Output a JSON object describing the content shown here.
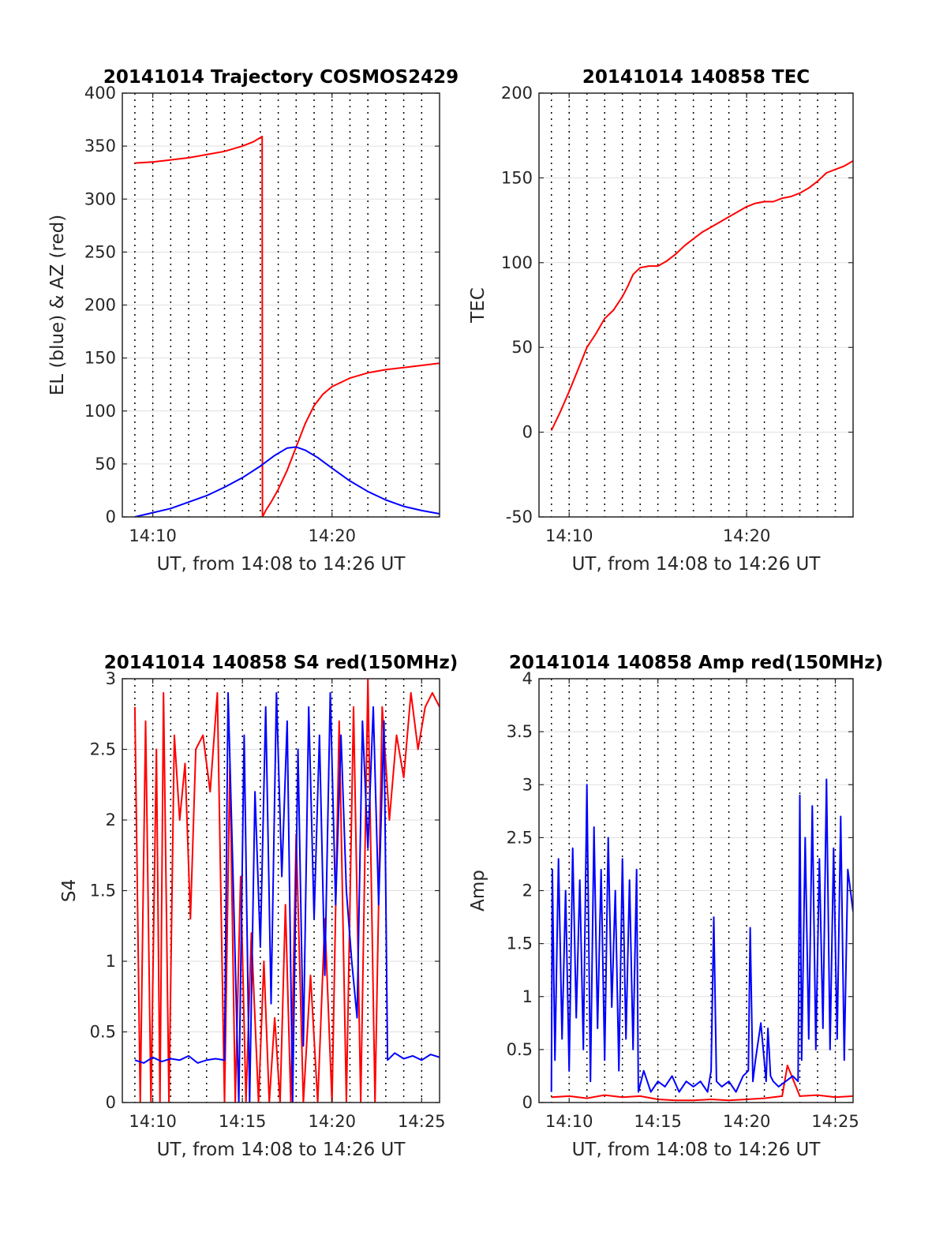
{
  "chart_data": [
    {
      "id": "trajectory",
      "type": "line",
      "title": "20141014 Trajectory COSMOS2429",
      "xlabel": "UT, from 14:08 to 14:26 UT",
      "ylabel": "EL (blue) & AZ (red)",
      "x_unit": "minutes after 14:00 UT",
      "xlim": [
        8.3,
        26.0
      ],
      "ylim": [
        0,
        400
      ],
      "yticks": [
        0,
        50,
        100,
        150,
        200,
        250,
        300,
        350,
        400
      ],
      "xticks": [
        {
          "value": 10,
          "label": "14:10"
        },
        {
          "value": 20,
          "label": "14:20"
        }
      ],
      "grid": true,
      "series": [
        {
          "color": "#ff0000",
          "x": [
            9.0,
            10.0,
            11.0,
            12.0,
            13.0,
            14.0,
            15.0,
            15.6,
            16.1,
            16.12,
            16.3,
            16.6,
            17.0,
            17.5,
            18.0,
            18.5,
            19.0,
            19.5,
            20.0,
            21.0,
            22.0,
            23.0,
            24.0,
            25.0,
            26.0
          ],
          "y": [
            334,
            335,
            337,
            339,
            342,
            345,
            350,
            354,
            359,
            0,
            6,
            14,
            26,
            44,
            66,
            88,
            105,
            116,
            123,
            131,
            136,
            139,
            141,
            143,
            145
          ]
        },
        {
          "color": "#0000ff",
          "x": [
            9.0,
            10.0,
            11.0,
            12.0,
            13.0,
            14.0,
            15.0,
            16.0,
            16.8,
            17.5,
            18.0,
            18.5,
            19.2,
            20.0,
            21.0,
            22.0,
            23.0,
            24.0,
            25.0,
            26.0
          ],
          "y": [
            0,
            4,
            8,
            14,
            20,
            28,
            37,
            48,
            58,
            65,
            66,
            63,
            56,
            46,
            34,
            24,
            16,
            10,
            6,
            3
          ]
        }
      ]
    },
    {
      "id": "tec",
      "type": "line",
      "title": "20141014 140858 TEC",
      "xlabel": "UT, from 14:08 to 14:26 UT",
      "ylabel": "TEC",
      "x_unit": "minutes after 14:00 UT",
      "xlim": [
        8.3,
        26.0
      ],
      "ylim": [
        -50,
        200
      ],
      "yticks": [
        -50,
        0,
        50,
        100,
        150,
        200
      ],
      "xticks": [
        {
          "value": 10,
          "label": "14:10"
        },
        {
          "value": 20,
          "label": "14:20"
        }
      ],
      "grid": true,
      "series": [
        {
          "color": "#ff0000",
          "x": [
            9.0,
            9.5,
            10.0,
            10.5,
            11.0,
            11.5,
            12.0,
            12.5,
            13.0,
            13.3,
            13.6,
            14.0,
            14.5,
            15.0,
            15.5,
            16.0,
            16.5,
            17.0,
            17.5,
            18.0,
            18.5,
            19.0,
            19.5,
            20.0,
            20.5,
            21.0,
            21.5,
            22.0,
            22.5,
            23.0,
            23.5,
            24.0,
            24.5,
            25.0,
            25.5,
            26.0
          ],
          "y": [
            1,
            12,
            24,
            37,
            50,
            58,
            67,
            72,
            80,
            86,
            93,
            97,
            98,
            98,
            101,
            105,
            110,
            114,
            118,
            121,
            124,
            127,
            130,
            133,
            135,
            136,
            136,
            138,
            139,
            141,
            144,
            148,
            153,
            155,
            157,
            160
          ]
        }
      ]
    },
    {
      "id": "s4",
      "type": "line",
      "title": "20141014 140858 S4 red(150MHz)",
      "xlabel": "UT, from 14:08 to 14:26 UT",
      "ylabel": "S4",
      "x_unit": "minutes after 14:00 UT",
      "xlim": [
        8.3,
        26.0
      ],
      "ylim": [
        0,
        3
      ],
      "yticks": [
        0,
        0.5,
        1,
        1.5,
        2,
        2.5,
        3
      ],
      "xticks": [
        {
          "value": 10,
          "label": "14:10"
        },
        {
          "value": 15,
          "label": "14:15"
        },
        {
          "value": 20,
          "label": "14:20"
        },
        {
          "value": 25,
          "label": "14:25"
        }
      ],
      "grid": true,
      "series": [
        {
          "color": "#ff0000",
          "x": [
            9.0,
            9.3,
            9.6,
            9.9,
            10.2,
            10.4,
            10.6,
            10.9,
            11.2,
            11.5,
            11.8,
            12.1,
            12.4,
            12.8,
            13.2,
            13.6,
            14.0,
            14.3,
            14.6,
            14.9,
            15.2,
            15.5,
            15.9,
            16.2,
            16.5,
            16.8,
            17.1,
            17.4,
            17.7,
            18.0,
            18.4,
            18.8,
            19.2,
            19.6,
            20.0,
            20.4,
            20.8,
            21.2,
            21.6,
            22.0,
            22.4,
            22.8,
            23.2,
            23.6,
            24.0,
            24.4,
            24.8,
            25.2,
            25.6,
            26.0
          ],
          "y": [
            2.8,
            0.0,
            2.7,
            0.0,
            2.5,
            0.0,
            2.9,
            0.0,
            2.6,
            2.0,
            2.4,
            1.3,
            2.5,
            2.6,
            2.2,
            2.9,
            0.0,
            2.4,
            0.0,
            1.6,
            0.0,
            1.2,
            0.0,
            1.0,
            0.0,
            0.6,
            0.0,
            1.4,
            0.0,
            1.9,
            0.0,
            0.9,
            0.0,
            1.3,
            0.0,
            2.7,
            0.0,
            2.8,
            0.0,
            3.0,
            0.0,
            2.8,
            2.0,
            2.6,
            2.3,
            2.9,
            2.5,
            2.8,
            2.9,
            2.8
          ]
        },
        {
          "color": "#0000ff",
          "x": [
            9.0,
            9.5,
            10.0,
            10.5,
            11.0,
            11.5,
            12.0,
            12.5,
            13.0,
            13.5,
            14.0,
            14.2,
            14.5,
            14.8,
            15.1,
            15.4,
            15.7,
            16.0,
            16.3,
            16.6,
            16.9,
            17.2,
            17.5,
            17.8,
            18.1,
            18.4,
            18.7,
            19.0,
            19.3,
            19.6,
            19.9,
            20.2,
            20.5,
            20.8,
            21.1,
            21.4,
            21.7,
            22.0,
            22.3,
            22.6,
            22.9,
            23.1,
            23.5,
            24.0,
            24.5,
            25.0,
            25.5,
            26.0
          ],
          "y": [
            0.3,
            0.28,
            0.32,
            0.29,
            0.31,
            0.3,
            0.33,
            0.28,
            0.3,
            0.31,
            0.3,
            2.9,
            1.5,
            0.0,
            2.6,
            0.0,
            2.2,
            1.1,
            2.8,
            0.7,
            2.9,
            1.6,
            2.7,
            0.0,
            2.5,
            0.4,
            2.8,
            1.3,
            2.6,
            0.9,
            2.9,
            1.4,
            2.6,
            1.5,
            1.0,
            0.6,
            2.7,
            1.8,
            2.8,
            1.4,
            2.7,
            0.3,
            0.35,
            0.31,
            0.33,
            0.3,
            0.34,
            0.32
          ]
        }
      ]
    },
    {
      "id": "amp",
      "type": "line",
      "title": "20141014 140858 Amp red(150MHz)",
      "xlabel": "UT, from 14:08 to 14:26 UT",
      "ylabel": "Amp",
      "x_unit": "minutes after 14:00 UT",
      "xlim": [
        8.3,
        26.0
      ],
      "ylim": [
        0,
        4
      ],
      "yticks": [
        0,
        0.5,
        1,
        1.5,
        2,
        2.5,
        3,
        3.5,
        4
      ],
      "xticks": [
        {
          "value": 10,
          "label": "14:10"
        },
        {
          "value": 15,
          "label": "14:15"
        },
        {
          "value": 20,
          "label": "14:20"
        },
        {
          "value": 25,
          "label": "14:25"
        }
      ],
      "grid": true,
      "series": [
        {
          "color": "#ff0000",
          "x": [
            9.0,
            10.0,
            11.0,
            12.0,
            13.0,
            14.0,
            15.0,
            16.0,
            17.0,
            18.0,
            19.0,
            20.0,
            21.0,
            22.0,
            22.3,
            23.0,
            24.0,
            25.0,
            26.0
          ],
          "y": [
            0.05,
            0.06,
            0.04,
            0.07,
            0.05,
            0.06,
            0.03,
            0.02,
            0.02,
            0.03,
            0.02,
            0.03,
            0.04,
            0.06,
            0.35,
            0.06,
            0.07,
            0.05,
            0.06
          ]
        },
        {
          "color": "#0000ff",
          "x": [
            9.0,
            9.05,
            9.2,
            9.4,
            9.6,
            9.8,
            10.0,
            10.2,
            10.4,
            10.6,
            10.8,
            11.0,
            11.2,
            11.4,
            11.6,
            11.8,
            12.0,
            12.2,
            12.4,
            12.6,
            12.8,
            13.0,
            13.2,
            13.4,
            13.6,
            13.8,
            13.9,
            14.2,
            14.6,
            15.0,
            15.4,
            15.8,
            16.2,
            16.6,
            17.0,
            17.4,
            17.8,
            18.0,
            18.15,
            18.3,
            18.6,
            19.0,
            19.4,
            19.8,
            20.1,
            20.2,
            20.35,
            20.5,
            20.8,
            21.1,
            21.2,
            21.35,
            21.5,
            21.8,
            22.2,
            22.6,
            22.9,
            23.0,
            23.1,
            23.3,
            23.5,
            23.7,
            23.9,
            24.1,
            24.3,
            24.5,
            24.7,
            24.9,
            25.1,
            25.3,
            25.5,
            25.7,
            26.0
          ],
          "y": [
            0.1,
            2.2,
            0.4,
            2.3,
            0.6,
            2.0,
            0.3,
            2.4,
            0.8,
            2.1,
            0.5,
            3.0,
            0.2,
            2.6,
            0.7,
            2.2,
            0.4,
            2.5,
            0.9,
            2.0,
            0.3,
            2.3,
            0.6,
            2.1,
            0.5,
            2.2,
            0.1,
            0.3,
            0.1,
            0.2,
            0.15,
            0.25,
            0.1,
            0.2,
            0.15,
            0.2,
            0.1,
            0.3,
            1.75,
            0.2,
            0.15,
            0.2,
            0.1,
            0.25,
            0.3,
            1.65,
            0.2,
            0.4,
            0.75,
            0.2,
            0.7,
            0.25,
            0.2,
            0.15,
            0.2,
            0.25,
            0.2,
            2.9,
            0.4,
            2.5,
            0.6,
            2.8,
            0.5,
            2.3,
            0.7,
            3.05,
            0.5,
            2.4,
            0.6,
            2.7,
            0.4,
            2.2,
            1.8
          ]
        }
      ]
    }
  ]
}
